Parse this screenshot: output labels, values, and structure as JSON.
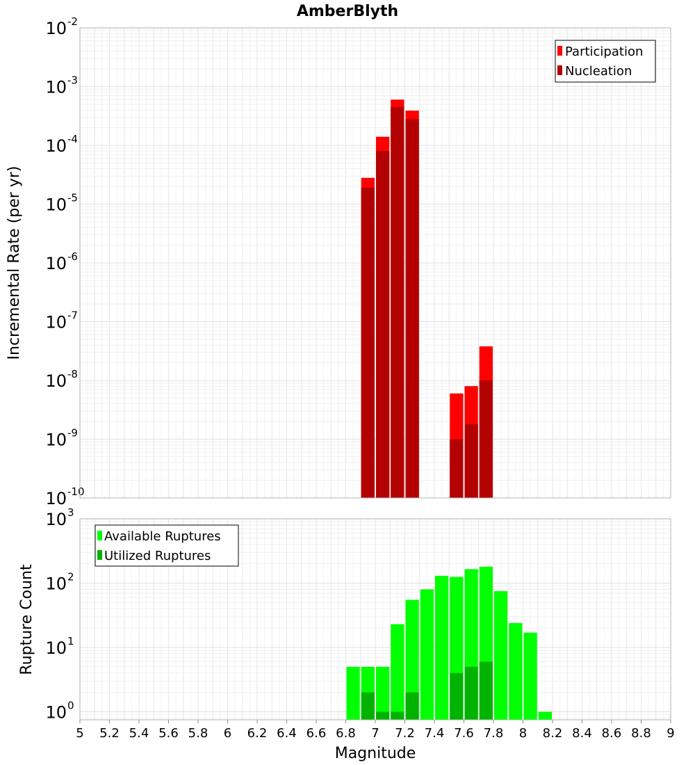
{
  "chart_data": [
    {
      "type": "bar",
      "title": "AmberBlyth",
      "xlabel": "",
      "ylabel": "Incremental Rate (per yr)",
      "xlim": [
        5,
        9
      ],
      "ylim": [
        1e-10,
        0.01
      ],
      "yscale": "log",
      "grid": true,
      "legend_position": "top-right",
      "bar_width": 0.1,
      "y_ticks": [
        {
          "base": "10",
          "exp": "-2",
          "value": 0.01
        },
        {
          "base": "10",
          "exp": "-3",
          "value": 0.001
        },
        {
          "base": "10",
          "exp": "-4",
          "value": 0.0001
        },
        {
          "base": "10",
          "exp": "-5",
          "value": 1e-05
        },
        {
          "base": "10",
          "exp": "-6",
          "value": 1e-06
        },
        {
          "base": "10",
          "exp": "-7",
          "value": 1e-07
        },
        {
          "base": "10",
          "exp": "-8",
          "value": 1e-08
        },
        {
          "base": "10",
          "exp": "-9",
          "value": 1e-09
        },
        {
          "base": "10",
          "exp": "-10",
          "value": 1e-10
        }
      ],
      "series": [
        {
          "name": "Participation",
          "color": "#ff0000",
          "x": [
            6.95,
            7.05,
            7.15,
            7.25,
            7.55,
            7.65,
            7.75
          ],
          "values": [
            2.8e-05,
            0.00014,
            0.0006,
            0.00039,
            6e-09,
            8e-09,
            3.8e-08
          ]
        },
        {
          "name": "Nucleation",
          "color": "#b30000",
          "x": [
            6.95,
            7.05,
            7.15,
            7.25,
            7.55,
            7.65,
            7.75
          ],
          "values": [
            1.9e-05,
            8e-05,
            0.00045,
            0.00028,
            1e-09,
            1.8e-09,
            1e-08
          ]
        }
      ]
    },
    {
      "type": "bar",
      "title": "",
      "xlabel": "Magnitude",
      "ylabel": "Rupture Count",
      "xlim": [
        5,
        9
      ],
      "ylim": [
        0.75,
        1000
      ],
      "yscale": "log",
      "grid": true,
      "legend_position": "top-left",
      "bar_width": 0.1,
      "x_ticks": [
        "5",
        "5.2",
        "5.4",
        "5.6",
        "5.8",
        "6",
        "6.2",
        "6.4",
        "6.6",
        "6.8",
        "7",
        "7.2",
        "7.4",
        "7.6",
        "7.8",
        "8",
        "8.2",
        "8.4",
        "8.6",
        "8.8",
        "9"
      ],
      "y_ticks": [
        {
          "base": "10",
          "exp": "3",
          "value": 1000
        },
        {
          "base": "10",
          "exp": "2",
          "value": 100
        },
        {
          "base": "10",
          "exp": "1",
          "value": 10
        },
        {
          "base": "10",
          "exp": "0",
          "value": 1
        }
      ],
      "series": [
        {
          "name": "Available Ruptures",
          "color": "#00ff00",
          "x": [
            6.85,
            6.95,
            7.05,
            7.15,
            7.25,
            7.35,
            7.45,
            7.55,
            7.65,
            7.75,
            7.85,
            7.95,
            8.05,
            8.15
          ],
          "values": [
            5,
            5,
            5,
            23,
            55,
            80,
            130,
            125,
            165,
            180,
            75,
            24,
            17,
            1
          ]
        },
        {
          "name": "Utilized Ruptures",
          "color": "#00b300",
          "x": [
            6.95,
            7.05,
            7.15,
            7.25,
            7.55,
            7.65,
            7.75
          ],
          "values": [
            2,
            1,
            1,
            2,
            4,
            5,
            6
          ]
        }
      ]
    }
  ]
}
